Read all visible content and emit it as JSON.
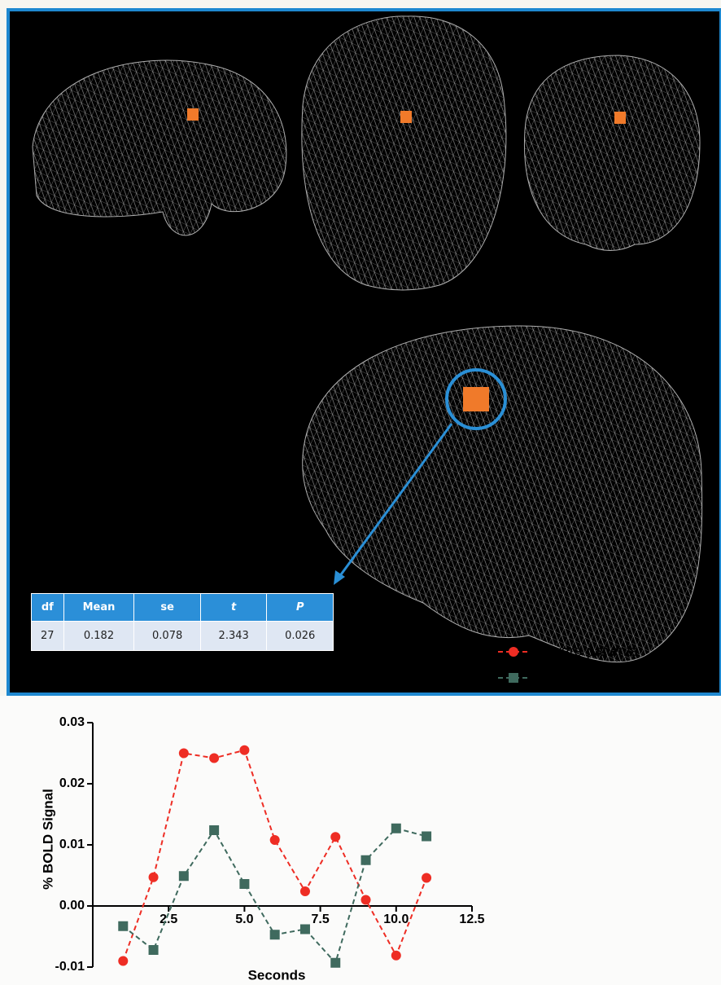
{
  "table": {
    "headers": [
      "df",
      "Mean",
      "se",
      "t",
      "P"
    ],
    "row": [
      "27",
      "0.182",
      "0.078",
      "2.343",
      "0.026"
    ]
  },
  "chart_data": {
    "type": "line",
    "ylabel": "% BOLD Signal",
    "xlabel": "Seconds",
    "x": [
      1,
      2,
      3,
      4,
      5,
      6,
      7,
      8,
      9,
      10,
      11
    ],
    "series": [
      {
        "name": "Aware patients",
        "color": "#ee2d24",
        "marker": "circle",
        "values": [
          -0.009,
          0.0047,
          0.025,
          0.0242,
          0.0255,
          0.0108,
          0.0024,
          0.0113,
          0.001,
          -0.0081,
          0.0046
        ]
      },
      {
        "name": "Unaware patients",
        "color": "#3f6a5e",
        "marker": "square",
        "values": [
          -0.0033,
          -0.0072,
          0.0049,
          0.0124,
          0.0036,
          -0.0047,
          -0.0038,
          -0.0093,
          0.0075,
          0.0127,
          0.0114
        ]
      }
    ],
    "xlim": [
      0,
      12.5
    ],
    "xticks": [
      2.5,
      {
        "value": 5,
        "label": "5.0"
      },
      7.5,
      {
        "value": 10,
        "label": "10.0"
      },
      12.5
    ],
    "ylim": [
      -0.01,
      0.03
    ],
    "yticks": [
      -0.01,
      {
        "value": 0,
        "label": "0.00"
      },
      0.01,
      0.02,
      0.03
    ],
    "legend": "right"
  }
}
